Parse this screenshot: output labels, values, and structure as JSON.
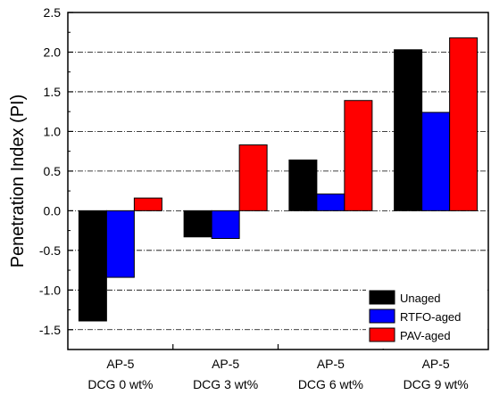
{
  "chart_data": {
    "type": "bar",
    "title": "",
    "xlabel": "",
    "ylabel": "Penetration Index (PI)",
    "ylim": [
      -1.75,
      2.5
    ],
    "yticks": [
      -1.5,
      -1.0,
      -0.5,
      0.0,
      0.5,
      1.0,
      1.5,
      2.0,
      2.5
    ],
    "ytick_labels": [
      "-1.5",
      "-1.0",
      "-0.5",
      "0.0",
      "0.5",
      "1.0",
      "1.5",
      "2.0",
      "2.5"
    ],
    "categories": [
      {
        "line1": "AP-5",
        "line2": "DCG 0 wt%"
      },
      {
        "line1": "AP-5",
        "line2": "DCG 3 wt%"
      },
      {
        "line1": "AP-5",
        "line2": "DCG 6 wt%"
      },
      {
        "line1": "AP-5",
        "line2": "DCG 9 wt%"
      }
    ],
    "series": [
      {
        "name": "Unaged",
        "color": "#000000",
        "values": [
          -1.39,
          -0.33,
          0.64,
          2.03
        ]
      },
      {
        "name": "RTFO-aged",
        "color": "#0000ff",
        "values": [
          -0.84,
          -0.35,
          0.21,
          1.24
        ]
      },
      {
        "name": "PAV-aged",
        "color": "#ff0000",
        "values": [
          0.16,
          0.83,
          1.39,
          2.18
        ]
      }
    ],
    "grid": "horizontal dash-dot",
    "legend_position": "bottom-right"
  }
}
